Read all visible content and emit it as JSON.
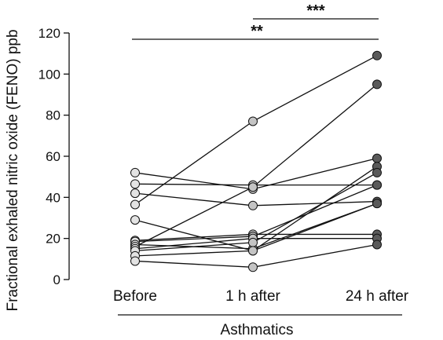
{
  "chart_data": {
    "type": "line",
    "categories": [
      "Before",
      "1 h after",
      "24 h after"
    ],
    "ylabel": "Fractional exhaled nitric oxide (FENO) ppb",
    "group_label": "Asthmatics",
    "ylim": [
      0,
      120
    ],
    "yticks": [
      0,
      20,
      40,
      60,
      80,
      100,
      120
    ],
    "grid": false,
    "subjects": [
      {
        "values": [
          52,
          44,
          59
        ]
      },
      {
        "values": [
          46.5,
          46,
          46
        ]
      },
      {
        "values": [
          42,
          36,
          38
        ]
      },
      {
        "values": [
          36.5,
          77,
          109
        ]
      },
      {
        "values": [
          29,
          14,
          55
        ]
      },
      {
        "values": [
          19,
          22,
          22
        ]
      },
      {
        "values": [
          18.5,
          21,
          46
        ]
      },
      {
        "values": [
          17,
          15,
          37
        ]
      },
      {
        "values": [
          16,
          45,
          95
        ]
      },
      {
        "values": [
          15,
          20,
          20
        ]
      },
      {
        "values": [
          14,
          18,
          52
        ]
      },
      {
        "values": [
          11.5,
          14,
          37
        ]
      },
      {
        "values": [
          9,
          6,
          17
        ]
      }
    ],
    "significance": [
      {
        "from": "1 h after",
        "to": "24 h after",
        "label": "***"
      },
      {
        "from": "Before",
        "to": "24 h after",
        "label": "**"
      }
    ]
  }
}
